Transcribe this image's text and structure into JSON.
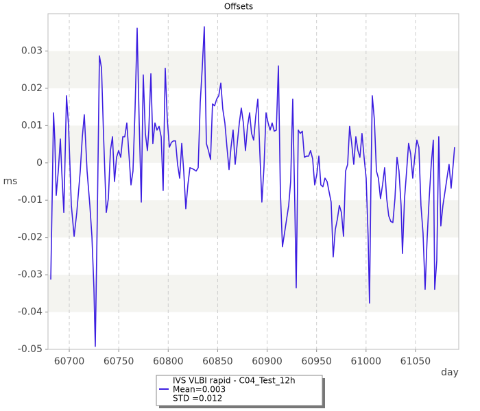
{
  "chart_data": {
    "type": "line",
    "title": "Offsets",
    "y_label": "ms",
    "x_label": "day",
    "xlim": [
      60678.5,
      61093.7
    ],
    "ylim": [
      -0.05,
      0.04
    ],
    "xticks": [
      60700,
      60750,
      60800,
      60850,
      60900,
      60950,
      61000,
      61050
    ],
    "yticks": [
      -0.05,
      -0.04,
      -0.03,
      -0.02,
      -0.01,
      0,
      0.01,
      0.02,
      0.03
    ],
    "grid": true,
    "legend_stats": [
      "Mean=0.003",
      "STD =0.012"
    ],
    "x": [
      60681.3,
      60682.7,
      60684.1,
      60685.4,
      60686.8,
      60688.9,
      60691.0,
      60692.4,
      60694.5,
      60697.2,
      60699.3,
      60702.1,
      60704.9,
      60707.6,
      60711.1,
      60713.2,
      60715.2,
      60718.0,
      60720.8,
      60722.9,
      60724.9,
      60726.3,
      60728.4,
      60730.5,
      60732.6,
      60734.7,
      60737.4,
      60739.5,
      60741.6,
      60743.7,
      60745.7,
      60747.8,
      60749.9,
      60752.0,
      60754.1,
      60756.1,
      60758.2,
      60760.3,
      60762.4,
      60764.4,
      60766.5,
      60768.6,
      60770.7,
      60772.8,
      60774.8,
      60776.9,
      60779.0,
      60780.4,
      60782.5,
      60784.5,
      60786.6,
      60788.7,
      60790.8,
      60792.9,
      60794.9,
      60797.0,
      60799.1,
      60801.2,
      60803.3,
      60805.3,
      60807.4,
      60809.5,
      60811.6,
      60813.7,
      60815.7,
      60817.8,
      60819.9,
      60822.0,
      60824.0,
      60826.1,
      60828.2,
      60830.3,
      60832.4,
      60834.4,
      60836.5,
      60838.6,
      60840.7,
      60842.8,
      60844.8,
      60846.9,
      60849.0,
      60851.1,
      60853.2,
      60855.2,
      60857.3,
      60859.4,
      60861.5,
      60863.5,
      60865.6,
      60867.7,
      60869.8,
      60871.9,
      60873.9,
      60876.0,
      60878.1,
      60880.2,
      60882.3,
      60884.3,
      60886.4,
      60888.5,
      60890.6,
      60892.7,
      60894.7,
      60896.8,
      60898.9,
      60901.0,
      60903.0,
      60905.1,
      60907.2,
      60909.3,
      60911.4,
      60913.4,
      60915.5,
      60917.6,
      60919.7,
      60921.8,
      60923.8,
      60925.9,
      60928.0,
      60929.4,
      60931.5,
      60933.5,
      60935.6,
      60937.7,
      60939.8,
      60941.9,
      60943.9,
      60946.0,
      60948.1,
      60950.2,
      60952.3,
      60954.3,
      60956.4,
      60958.5,
      60960.6,
      60962.6,
      60964.7,
      60966.8,
      60968.9,
      60971.0,
      60973.0,
      60975.1,
      60977.2,
      60979.3,
      60981.4,
      60983.4,
      60985.5,
      60987.6,
      60989.7,
      60991.8,
      60993.8,
      60995.9,
      60998.0,
      61000.1,
      61002.1,
      61003.5,
      61004.9,
      61006.3,
      61008.4,
      61010.5,
      61012.5,
      61014.6,
      61016.7,
      61018.8,
      61020.9,
      61022.9,
      61025.0,
      61027.1,
      61029.2,
      61031.3,
      61033.3,
      61035.4,
      61036.8,
      61038.9,
      61041.0,
      61043.0,
      61045.1,
      61047.2,
      61049.3,
      61051.4,
      61053.4,
      61055.5,
      61057.6,
      61059.7,
      61061.7,
      61063.8,
      61065.9,
      61068.0,
      61069.4,
      61071.5,
      61073.5,
      61075.6,
      61077.7,
      61079.8,
      61081.8,
      61083.9,
      61086.0,
      61088.1,
      61089.5
    ],
    "series": [
      {
        "name": "IVS VLBI rapid - C04_Test_12h",
        "color": "#3c1ee0",
        "values": [
          -0.0313,
          -0.0096,
          0.0134,
          0.0061,
          -0.0087,
          -0.0022,
          0.0064,
          -0.0022,
          -0.0133,
          0.018,
          0.0098,
          -0.0114,
          -0.0197,
          -0.0133,
          -0.0022,
          0.007,
          0.0129,
          -0.0022,
          -0.0114,
          -0.0197,
          -0.0335,
          -0.0492,
          -0.0133,
          0.0287,
          0.0254,
          0.007,
          -0.0133,
          -0.0096,
          0.0033,
          0.007,
          -0.005,
          0.0015,
          0.0033,
          0.0015,
          0.007,
          0.007,
          0.0107,
          0.0024,
          -0.0059,
          -0.0022,
          0.0144,
          0.0361,
          0.0107,
          -0.0105,
          0.0236,
          0.0079,
          0.0033,
          0.0088,
          0.0239,
          0.0052,
          0.0107,
          0.0088,
          0.0098,
          0.007,
          -0.0074,
          0.0254,
          0.0116,
          0.0042,
          0.0055,
          0.0059,
          0.0059,
          -0.0004,
          -0.0041,
          0.0052,
          -0.0022,
          -0.0123,
          -0.0059,
          -0.0013,
          -0.0015,
          -0.0018,
          -0.0022,
          -0.0013,
          0.0162,
          0.0254,
          0.0365,
          0.0052,
          0.0033,
          0.0009,
          0.0158,
          0.0153,
          0.0171,
          0.018,
          0.0214,
          0.0144,
          0.0107,
          0.0042,
          -0.0018,
          0.0042,
          0.0088,
          -0.0004,
          0.0052,
          0.0107,
          0.0147,
          0.0107,
          0.0033,
          0.0098,
          0.0134,
          0.0079,
          0.0061,
          0.0125,
          0.0171,
          0.0024,
          -0.0105,
          -0.0013,
          0.0134,
          0.0107,
          0.0088,
          0.0107,
          0.0085,
          0.0088,
          0.026,
          -0.0077,
          -0.0225,
          -0.0188,
          -0.0151,
          -0.0114,
          -0.005,
          0.0171,
          -0.0114,
          -0.0335,
          0.0088,
          0.0079,
          0.0085,
          0.0015,
          0.0018,
          0.0018,
          0.0033,
          0.0011,
          -0.0059,
          -0.0031,
          0.0018,
          -0.0059,
          -0.0064,
          -0.0041,
          -0.005,
          -0.0077,
          -0.0105,
          -0.0252,
          -0.0179,
          -0.0151,
          -0.0114,
          -0.0133,
          -0.0197,
          -0.0022,
          -0.0004,
          0.0098,
          0.0052,
          -0.0004,
          0.007,
          0.0033,
          0.0015,
          0.0079,
          0.0015,
          -0.0041,
          -0.0197,
          -0.0376,
          -0.0059,
          0.018,
          0.0116,
          -0.0022,
          -0.0041,
          -0.0096,
          -0.0059,
          -0.0013,
          -0.0096,
          -0.0142,
          -0.0157,
          -0.016,
          -0.0096,
          0.0015,
          -0.0022,
          -0.0114,
          -0.0243,
          -0.0096,
          -0.0022,
          0.0052,
          0.0024,
          -0.0041,
          0.0018,
          0.0061,
          0.0042,
          -0.0114,
          -0.0188,
          -0.0339,
          -0.0206,
          -0.0096,
          -0.0004,
          0.0061,
          -0.0339,
          -0.0262,
          0.007,
          -0.0169,
          -0.0114,
          -0.0077,
          -0.0041,
          -0.0004,
          -0.0068,
          -0.0004,
          0.0042
        ]
      }
    ]
  }
}
